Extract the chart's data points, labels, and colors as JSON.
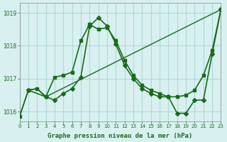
{
  "background_color": "#d8f0f0",
  "grid_color": "#b0d8d8",
  "line_color": "#1a6b1a",
  "xlabel": "Graphe pression niveau de la mer (hPa)",
  "xlabel_color": "#1a6b1a",
  "ylim": [
    1015.7,
    1019.3
  ],
  "xlim": [
    0,
    23
  ],
  "yticks": [
    1016,
    1017,
    1018,
    1019
  ],
  "xticks": [
    0,
    1,
    2,
    3,
    4,
    5,
    6,
    7,
    8,
    9,
    10,
    11,
    12,
    13,
    14,
    15,
    16,
    17,
    18,
    19,
    20,
    21,
    22,
    23
  ],
  "series": [
    {
      "x": [
        0,
        1,
        2,
        3,
        4,
        5,
        6,
        7,
        8,
        9,
        10,
        11,
        12,
        13,
        14,
        15,
        16,
        17,
        18,
        19,
        20,
        21,
        22,
        23
      ],
      "y": [
        1015.85,
        1016.65,
        1016.7,
        1016.45,
        1017.05,
        1017.1,
        1017.2,
        1018.15,
        1018.65,
        1018.5,
        1018.55,
        1018.15,
        1017.55,
        1017.1,
        1016.8,
        1016.65,
        1016.55,
        1016.45,
        1016.45,
        1016.5,
        1016.65,
        1017.1,
        1017.85,
        1019.1
      ],
      "marker": "s",
      "markersize": 3,
      "linewidth": 1.2
    },
    {
      "x": [
        1,
        3,
        4,
        5,
        6,
        7,
        8,
        9,
        10,
        11,
        12,
        13,
        14,
        15,
        16,
        17,
        18,
        19,
        20,
        21,
        22,
        23
      ],
      "y": [
        1016.65,
        1016.45,
        1016.35,
        1016.55,
        1016.7,
        1017.05,
        1018.6,
        1018.85,
        1018.6,
        1018.05,
        1017.4,
        1017.0,
        1016.7,
        1016.55,
        1016.45,
        1016.45,
        1015.95,
        1015.95,
        1016.35,
        1016.35,
        1017.75,
        1019.1
      ],
      "marker": "D",
      "markersize": 3,
      "linewidth": 1.2
    },
    {
      "x": [
        0,
        1,
        2,
        3,
        23
      ],
      "y": [
        1015.85,
        1016.65,
        1016.7,
        1016.45,
        1019.1
      ],
      "marker": null,
      "markersize": 0,
      "linewidth": 1.0
    }
  ]
}
